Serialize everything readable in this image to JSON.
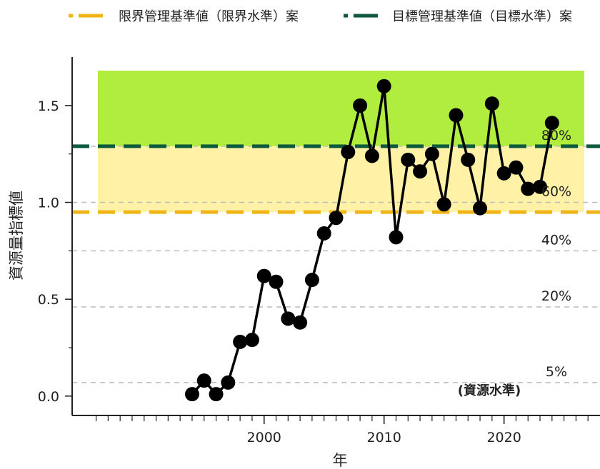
{
  "chart_data": {
    "type": "line",
    "xlabel": "年",
    "ylabel": "資源量指標値",
    "xlim": [
      1984,
      2028
    ],
    "ylim": [
      -0.1,
      1.75
    ],
    "x_ticks": [
      2000,
      2010,
      2020
    ],
    "y_ticks": [
      0.0,
      0.5,
      1.0,
      1.5
    ],
    "y_tick_labels": [
      "0.0",
      "0.5",
      "1.0",
      "1.5"
    ],
    "series": [
      {
        "x": [
          1994,
          1995,
          1996,
          1997,
          1998,
          1999,
          2000,
          2001,
          2002,
          2003,
          2004,
          2005,
          2006,
          2007,
          2008,
          2009,
          2010,
          2011,
          2012,
          2013,
          2014,
          2015,
          2016,
          2017,
          2018,
          2019,
          2020,
          2021,
          2022,
          2023,
          2024
        ],
        "values": [
          0.01,
          0.08,
          0.01,
          0.07,
          0.28,
          0.29,
          0.62,
          0.59,
          0.4,
          0.38,
          0.6,
          0.84,
          0.92,
          1.26,
          1.5,
          1.24,
          1.6,
          0.82,
          1.22,
          1.16,
          1.25,
          0.99,
          1.45,
          1.22,
          0.97,
          1.51,
          1.15,
          1.18,
          1.07,
          1.08,
          1.41
        ]
      }
    ],
    "reference_lines": [
      {
        "name": "限界管理基準値（限界水準）案",
        "value": 0.95,
        "color": "#f0b417",
        "style": "dash"
      },
      {
        "name": "目標管理基準値（目標水準）案",
        "value": 1.29,
        "color": "#0e5a3c",
        "style": "dash"
      }
    ],
    "percentile_lines": [
      {
        "label": "80%",
        "value": 1.29
      },
      {
        "label": "60%",
        "value": 1.0
      },
      {
        "label": "40%",
        "value": 0.75
      },
      {
        "label": "20%",
        "value": 0.46
      },
      {
        "label": "5%",
        "value": 0.07
      }
    ],
    "bands": [
      {
        "from": 1.29,
        "to": 1.68,
        "color": "#b0ed3f"
      },
      {
        "from": 0.95,
        "to": 1.29,
        "color": "#fff2a6"
      }
    ],
    "note": "(資源水準)",
    "legend_placement": "top",
    "colors": {
      "line": "#000000",
      "grid": "#bbbbbb"
    }
  }
}
